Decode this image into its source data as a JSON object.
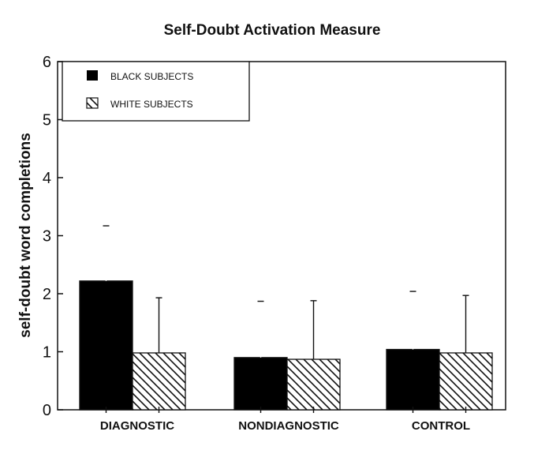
{
  "chart_data": {
    "type": "bar",
    "title": "Self-Doubt Activation Measure",
    "ylabel": "self-doubt word completions",
    "xlabel": "",
    "ylim": [
      0,
      6
    ],
    "yticks": [
      0,
      1,
      2,
      3,
      4,
      5,
      6
    ],
    "categories": [
      "DIAGNOSTIC",
      "NONDIAGNOSTIC",
      "CONTROL"
    ],
    "series": [
      {
        "name": "BLACK SUBJECTS",
        "fill": "solid",
        "color": "#000000",
        "values": [
          2.22,
          0.9,
          1.04
        ],
        "error": [
          0.95,
          0.97,
          1.0
        ]
      },
      {
        "name": "WHITE SUBJECTS",
        "fill": "hatched",
        "color": "#000000",
        "values": [
          0.98,
          0.87,
          0.98
        ],
        "error": [
          0.95,
          1.01,
          0.99
        ]
      }
    ],
    "legend": "top-left",
    "grid": false
  }
}
